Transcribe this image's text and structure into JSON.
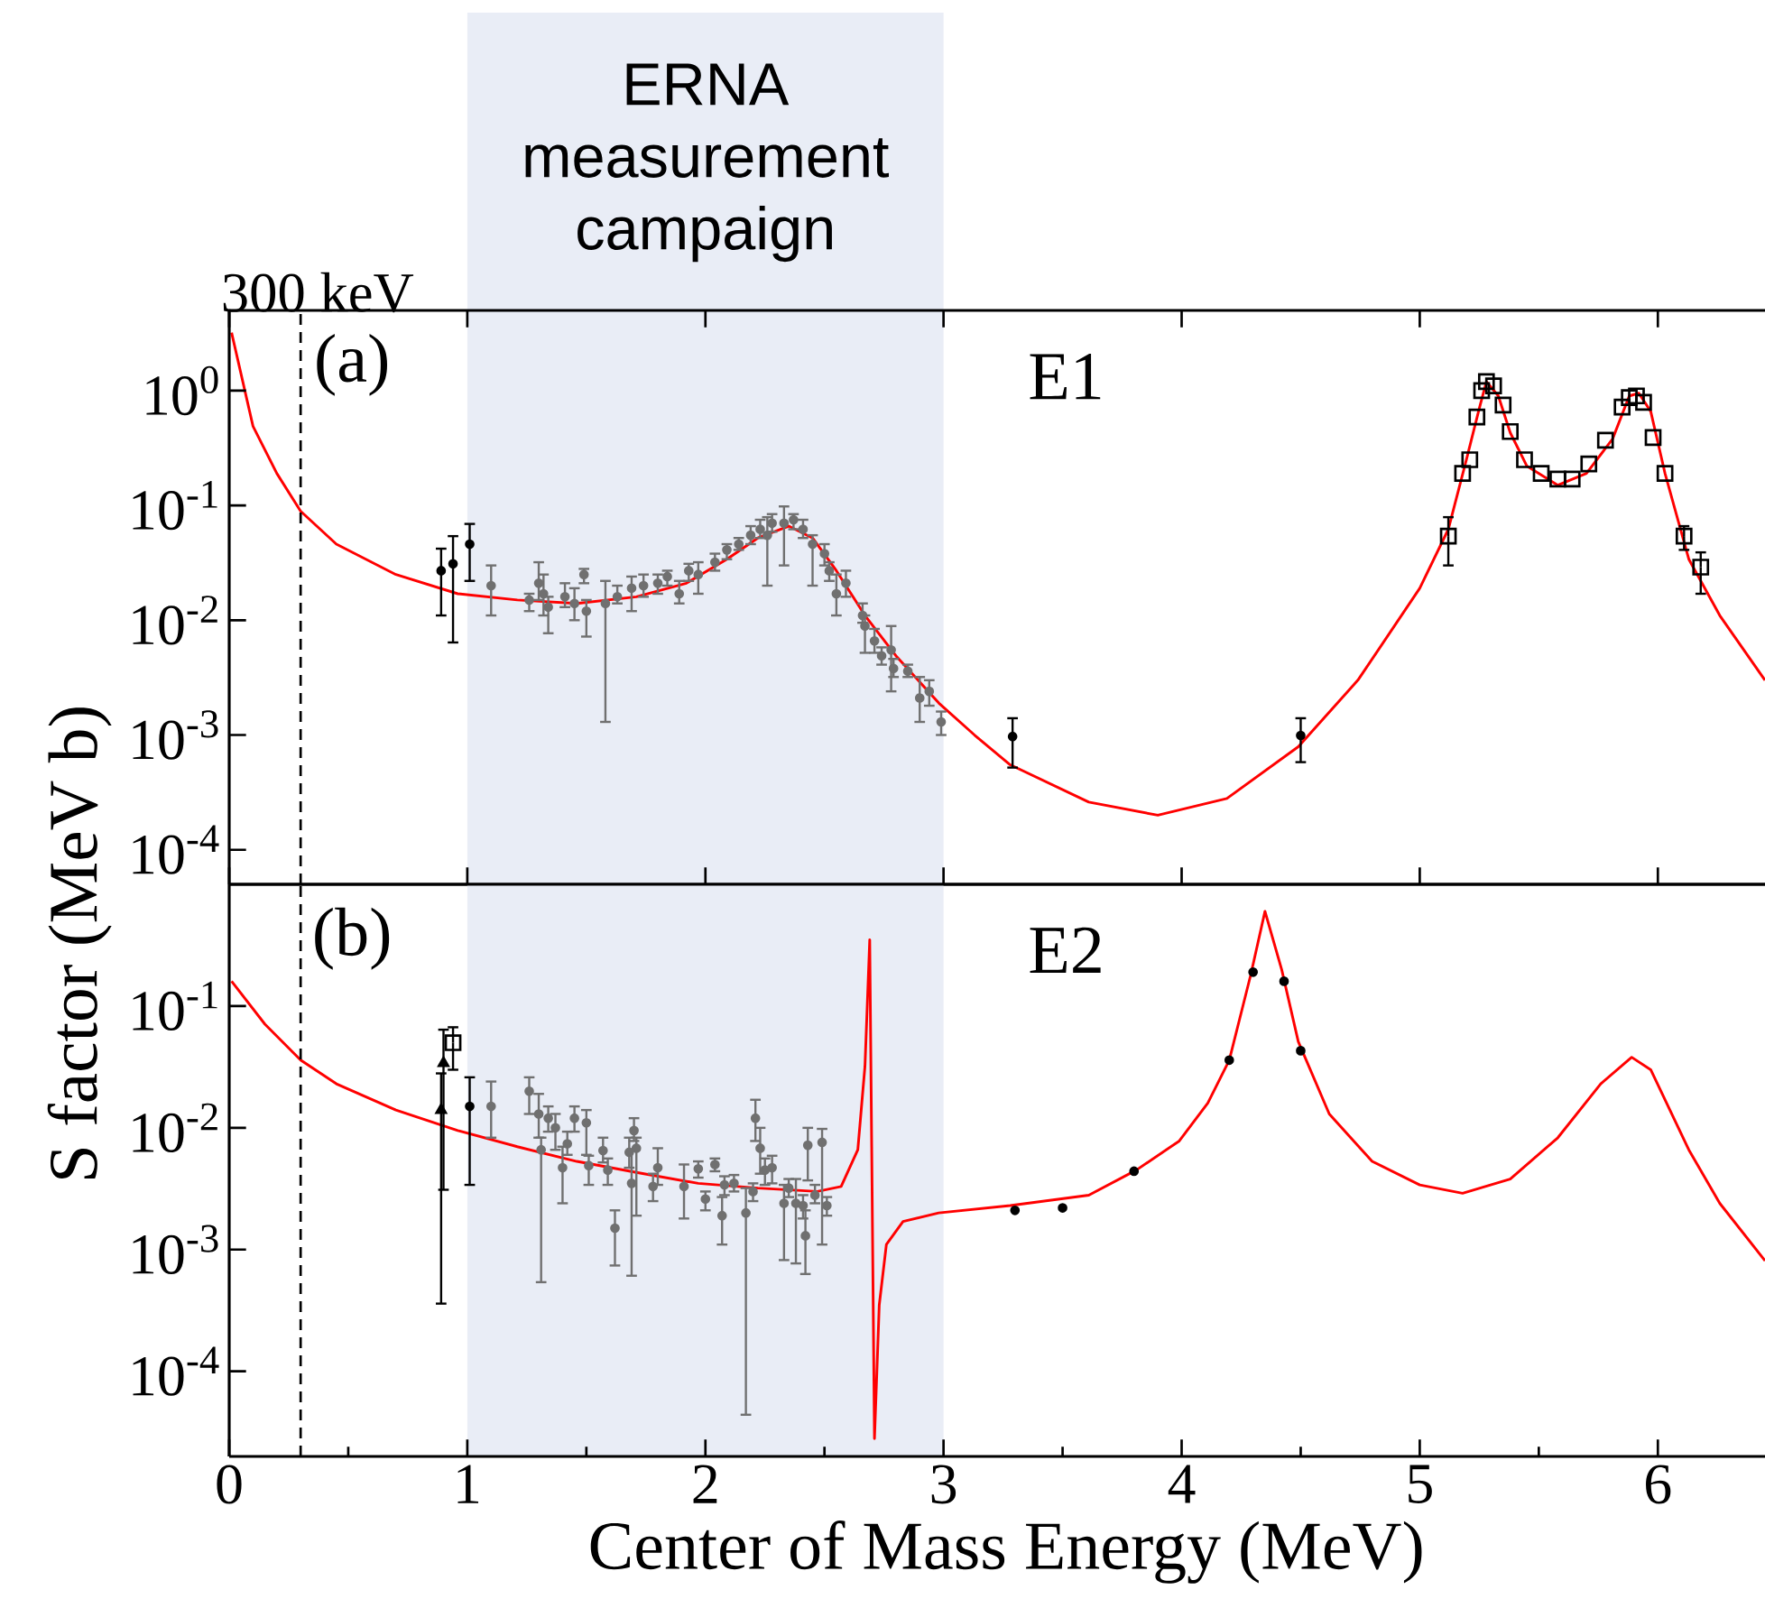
{
  "chart_data": [
    {
      "type": "scatter",
      "annotations": [
        "(a)",
        "E1"
      ],
      "xlim": [
        0,
        6.45
      ],
      "xticks": [
        0,
        1,
        2,
        3,
        4,
        5,
        6
      ],
      "ylim": [
        5e-05,
        5
      ],
      "yticks": [
        {
          "value": 1,
          "label": "10$^{0}$"
        },
        {
          "value": 0.1,
          "label": "10$^{-1}$"
        },
        {
          "value": 0.01,
          "label": "10$^{-2}$"
        },
        {
          "value": 0.001,
          "label": "10$^{-3}$"
        },
        {
          "value": 0.0001,
          "label": "10$^{-4}$"
        }
      ],
      "log": "y",
      "tick_labels": "y",
      "bands": [
        {
          "axis": "x",
          "from": 1,
          "to": 3,
          "label": "ERNA measurement campaign",
          "color": "#e9edf6"
        }
      ],
      "ref_lines": [
        {
          "axis": "x",
          "value": 0.3,
          "label": "300 keV",
          "color": "#000000",
          "line_style": "dashed"
        }
      ],
      "series": [
        {
          "type": "line",
          "color": "#ff0000",
          "x": [
            0.01,
            0.1,
            0.2,
            0.3,
            0.45,
            0.7,
            0.96,
            1.21,
            1.46,
            1.71,
            1.92,
            2.09,
            2.22,
            2.35,
            2.45,
            2.55,
            2.67,
            2.8,
            2.98,
            3.13,
            3.28,
            3.61,
            3.9,
            4.19,
            4.49,
            4.74,
            5.0,
            5.12,
            5.2,
            5.25,
            5.28,
            5.33,
            5.38,
            5.45,
            5.58,
            5.7,
            5.81,
            5.88,
            5.92,
            5.97,
            6.03,
            6.13,
            6.26,
            6.45
          ],
          "values": [
            3.2,
            0.49,
            0.19,
            0.089,
            0.046,
            0.025,
            0.017,
            0.015,
            0.014,
            0.016,
            0.021,
            0.034,
            0.052,
            0.066,
            0.052,
            0.027,
            0.011,
            0.0049,
            0.0019,
            0.001,
            0.00055,
            0.00026,
            0.0002,
            0.00028,
            0.00079,
            0.003,
            0.019,
            0.062,
            0.27,
            0.7,
            1.2,
            0.9,
            0.43,
            0.22,
            0.15,
            0.19,
            0.38,
            0.9,
            0.95,
            0.66,
            0.19,
            0.034,
            0.011,
            0.003
          ]
        },
        {
          "color": "#707070",
          "marker": "circle",
          "x": [
            1.1,
            1.26,
            1.3,
            1.32,
            1.34,
            1.41,
            1.45,
            1.49,
            1.5,
            1.58,
            1.63,
            1.69,
            1.74,
            1.8,
            1.84,
            1.89,
            1.93,
            1.97,
            2.04,
            2.09,
            2.14,
            2.19,
            2.23,
            2.26,
            2.28,
            2.33,
            2.37,
            2.41,
            2.45,
            2.5,
            2.52,
            2.55,
            2.59,
            2.66,
            2.67,
            2.71,
            2.74,
            2.78,
            2.79,
            2.85,
            2.9,
            2.94,
            2.99
          ],
          "values": [
            0.02,
            0.015,
            0.021,
            0.017,
            0.013,
            0.016,
            0.014,
            0.025,
            0.012,
            0.014,
            0.016,
            0.019,
            0.02,
            0.021,
            0.024,
            0.017,
            0.027,
            0.025,
            0.032,
            0.041,
            0.046,
            0.055,
            0.062,
            0.055,
            0.07,
            0.07,
            0.075,
            0.062,
            0.046,
            0.038,
            0.027,
            0.017,
            0.021,
            0.011,
            0.0089,
            0.0066,
            0.0049,
            0.0055,
            0.0038,
            0.0036,
            0.0021,
            0.0024,
            0.0013
          ],
          "errors": [
            [
              0.011,
              0.03
            ],
            [
              0.012,
              0.017
            ],
            [
              0.015,
              0.032
            ],
            [
              0.011,
              0.025
            ],
            [
              0.0077,
              0.016
            ],
            [
              0.013,
              0.021
            ],
            [
              0.01,
              0.019
            ],
            [
              0.021,
              0.028
            ],
            [
              0.0072,
              0.015
            ],
            [
              0.0013,
              0.022
            ],
            [
              0.014,
              0.02
            ],
            [
              0.012,
              0.024
            ],
            [
              0.016,
              0.025
            ],
            [
              0.017,
              0.025
            ],
            [
              0.02,
              0.027
            ],
            [
              0.014,
              0.022
            ],
            [
              0.022,
              0.031
            ],
            [
              0.017,
              0.032
            ],
            [
              0.027,
              0.038
            ],
            [
              0.034,
              0.046
            ],
            [
              0.041,
              0.052
            ],
            [
              0.046,
              0.066
            ],
            [
              0.052,
              0.075
            ],
            [
              0.02,
              0.079
            ],
            [
              0.059,
              0.084
            ],
            [
              0.03,
              0.098
            ],
            [
              0.062,
              0.084
            ],
            [
              0.052,
              0.075
            ],
            [
              0.02,
              0.055
            ],
            [
              0.03,
              0.046
            ],
            [
              0.022,
              0.032
            ],
            [
              0.011,
              0.025
            ],
            [
              0.016,
              0.027
            ],
            [
              0.0095,
              0.014
            ],
            [
              0.0052,
              0.011
            ],
            [
              0.0052,
              0.0084
            ],
            [
              0.0041,
              0.0058
            ],
            [
              0.0024,
              0.0089
            ],
            [
              0.0032,
              0.0046
            ],
            [
              0.0032,
              0.0041
            ],
            [
              0.0013,
              0.0032
            ],
            [
              0.0018,
              0.003
            ],
            [
              0.001,
              0.0016
            ]
          ]
        },
        {
          "color": "#000000",
          "marker": "circle",
          "x": [
            0.89,
            0.94,
            1.01,
            3.29,
            4.5
          ],
          "values": [
            0.027,
            0.031,
            0.046,
            0.00097,
            0.00099
          ],
          "errors": [
            [
              0.011,
              0.042
            ],
            [
              0.0064,
              0.054
            ],
            [
              0.022,
              0.069
            ],
            [
              0.00052,
              0.0014
            ],
            [
              0.00058,
              0.0014
            ]
          ]
        },
        {
          "color": "#000000",
          "marker": "square",
          "x": [
            5.12,
            5.18,
            5.21,
            5.24,
            5.26,
            5.28,
            5.31,
            5.35,
            5.38,
            5.44,
            5.51,
            5.58,
            5.64,
            5.71,
            5.78,
            5.85,
            5.88,
            5.91,
            5.94,
            5.98,
            6.03,
            6.11,
            6.18
          ],
          "values": [
            0.054,
            0.19,
            0.25,
            0.59,
            1.0,
            1.2,
            1.1,
            0.75,
            0.44,
            0.25,
            0.19,
            0.17,
            0.17,
            0.23,
            0.37,
            0.72,
            0.87,
            0.9,
            0.79,
            0.39,
            0.19,
            0.054,
            0.029
          ],
          "errors": [
            [
              0.03,
              0.079
            ],
            null,
            null,
            null,
            null,
            null,
            null,
            null,
            null,
            null,
            null,
            null,
            null,
            null,
            null,
            null,
            null,
            null,
            null,
            null,
            null,
            [
              0.041,
              0.066
            ],
            [
              0.017,
              0.039
            ]
          ]
        }
      ]
    },
    {
      "type": "scatter",
      "xlabel": "Center of Mass Energy (MeV)",
      "ylabel": "S factor (MeV b)",
      "annotations": [
        "(b)",
        "E2"
      ],
      "xlim": [
        0,
        6.45
      ],
      "xticks": [
        0,
        {
          "value": 0.5,
          "label": null
        },
        1,
        {
          "value": 1.5,
          "label": null
        },
        2,
        {
          "value": 2.5,
          "label": null
        },
        3,
        {
          "value": 3.5,
          "label": null
        },
        4,
        {
          "value": 4.5,
          "label": null
        },
        5,
        {
          "value": 5.5,
          "label": null
        },
        6
      ],
      "ylim": [
        2e-05,
        1
      ],
      "yticks": [
        {
          "value": 0.1,
          "label": "10$^{-1}$"
        },
        {
          "value": 0.01,
          "label": "10$^{-2}$"
        },
        {
          "value": 0.001,
          "label": "10$^{-3}$"
        },
        {
          "value": 0.0001,
          "label": "10$^{-4}$"
        }
      ],
      "log": "y",
      "bands": [
        {
          "axis": "x",
          "from": 1,
          "to": 3,
          "color": "#e9edf6"
        }
      ],
      "ref_lines": [
        {
          "axis": "x",
          "value": 0.3,
          "color": "#000000",
          "line_style": "dashed"
        }
      ],
      "series": [
        {
          "type": "line",
          "color": "#ff0000",
          "x": [
            0.01,
            0.15,
            0.3,
            0.45,
            0.7,
            0.96,
            1.21,
            1.46,
            1.71,
            1.97,
            2.22,
            2.47,
            2.57,
            2.64,
            2.67,
            2.69,
            2.71,
            2.73,
            2.76,
            2.83,
            2.98,
            3.28,
            3.61,
            3.81,
            3.99,
            4.11,
            4.2,
            4.29,
            4.35,
            4.42,
            4.49,
            4.62,
            4.8,
            5.0,
            5.18,
            5.38,
            5.58,
            5.76,
            5.89,
            5.97,
            6.13,
            6.26,
            6.45
          ],
          "values": [
            0.16,
            0.071,
            0.036,
            0.023,
            0.014,
            0.0095,
            0.007,
            0.0053,
            0.0043,
            0.0035,
            0.0032,
            0.003,
            0.0033,
            0.0066,
            0.032,
            0.35,
            2.8e-05,
            0.00035,
            0.0011,
            0.0017,
            0.002,
            0.0023,
            0.0028,
            0.0045,
            0.0078,
            0.016,
            0.036,
            0.18,
            0.6,
            0.2,
            0.051,
            0.013,
            0.0053,
            0.0034,
            0.0029,
            0.0038,
            0.0083,
            0.023,
            0.038,
            0.03,
            0.0066,
            0.0024,
            0.00081
          ]
        },
        {
          "color": "#707070",
          "marker": "circle",
          "x": [
            1.1,
            1.26,
            1.3,
            1.31,
            1.34,
            1.37,
            1.4,
            1.42,
            1.45,
            1.5,
            1.51,
            1.57,
            1.59,
            1.62,
            1.68,
            1.69,
            1.7,
            1.71,
            1.78,
            1.8,
            1.91,
            1.97,
            2.0,
            2.04,
            2.07,
            2.08,
            2.12,
            2.17,
            2.2,
            2.21,
            2.23,
            2.25,
            2.28,
            2.33,
            2.35,
            2.38,
            2.41,
            2.42,
            2.43,
            2.46,
            2.49,
            2.51
          ],
          "values": [
            0.015,
            0.02,
            0.013,
            0.0066,
            0.012,
            0.01,
            0.0047,
            0.0074,
            0.012,
            0.011,
            0.0049,
            0.0065,
            0.0045,
            0.0015,
            0.0063,
            0.0035,
            0.0095,
            0.0068,
            0.0033,
            0.0047,
            0.0033,
            0.0046,
            0.0026,
            0.005,
            0.0019,
            0.0034,
            0.0035,
            0.002,
            0.003,
            0.012,
            0.0068,
            0.0045,
            0.0047,
            0.0024,
            0.0032,
            0.0024,
            0.0023,
            0.0013,
            0.0072,
            0.0028,
            0.0076,
            0.0023
          ],
          "errors": [
            [
              0.0083,
              0.024
            ],
            [
              0.013,
              0.026
            ],
            [
              0.0083,
              0.019
            ],
            [
              0.00054,
              0.0083
            ],
            [
              0.0093,
              0.015
            ],
            [
              0.0066,
              0.013
            ],
            [
              0.0024,
              0.007
            ],
            [
              0.006,
              0.0093
            ],
            [
              0.0093,
              0.015
            ],
            [
              0.006,
              0.014
            ],
            [
              0.0034,
              0.0059
            ],
            [
              0.0052,
              0.0083
            ],
            [
              0.0034,
              0.0056
            ],
            [
              0.00074,
              0.0021
            ],
            [
              0.0047,
              0.0083
            ],
            [
              0.00061,
              0.0066
            ],
            [
              0.0078,
              0.012
            ],
            [
              0.0019,
              0.0083
            ],
            [
              0.0025,
              0.0042
            ],
            [
              0.0034,
              0.0068
            ],
            [
              0.0018,
              0.005
            ],
            [
              0.0039,
              0.0053
            ],
            [
              0.0021,
              0.003
            ],
            [
              0.0044,
              0.0056
            ],
            [
              0.0011,
              0.0027
            ],
            [
              0.0028,
              0.004
            ],
            [
              0.003,
              0.0041
            ],
            [
              4.4e-05,
              0.0032
            ],
            [
              0.0025,
              0.0035
            ],
            [
              0.0078,
              0.017
            ],
            [
              0.0042,
              0.01
            ],
            [
              0.0034,
              0.0056
            ],
            [
              0.0035,
              0.0059
            ],
            [
              0.00082,
              0.0034
            ],
            [
              0.0027,
              0.0038
            ],
            [
              0.00077,
              0.0038
            ],
            [
              0.0018,
              0.0028
            ],
            [
              0.00063,
              0.0021
            ],
            [
              0.0037,
              0.01
            ],
            [
              0.0024,
              0.0034
            ],
            [
              0.0011,
              0.0098
            ],
            [
              0.0019,
              0.0027
            ]
          ]
        },
        {
          "color": "#000000",
          "marker": "triangle",
          "x": [
            0.9,
            0.89
          ],
          "values": [
            0.034,
            0.014
          ],
          "errors": [
            [
              0.0031,
              0.064
            ],
            [
              0.00036,
              0.028
            ]
          ]
        },
        {
          "color": "#000000",
          "marker": "square",
          "x": [
            0.94
          ],
          "values": [
            0.05
          ],
          "errors": [
            [
              0.03,
              0.067
            ]
          ]
        },
        {
          "color": "#000000",
          "marker": "circle",
          "x": [
            1.01,
            3.3,
            3.5,
            3.8,
            4.2,
            4.3,
            4.43,
            4.5
          ],
          "values": [
            0.015,
            0.0021,
            0.0022,
            0.0044,
            0.036,
            0.19,
            0.16,
            0.043
          ],
          "errors": [
            [
              0.0034,
              0.026
            ],
            null,
            null,
            null,
            null,
            null,
            null,
            null
          ]
        }
      ]
    }
  ]
}
